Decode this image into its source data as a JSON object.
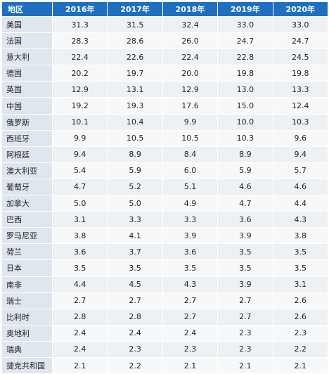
{
  "table": {
    "headers": [
      "地区",
      "2016年",
      "2017年",
      "2018年",
      "2019年",
      "2020年"
    ],
    "rows": [
      [
        "美国",
        "31.3",
        "31.5",
        "32.4",
        "33.0",
        "33.0"
      ],
      [
        "法国",
        "28.3",
        "28.6",
        "26.0",
        "24.7",
        "24.7"
      ],
      [
        "意大利",
        "22.4",
        "22.6",
        "22.4",
        "22.8",
        "24.5"
      ],
      [
        "德国",
        "20.2",
        "19.7",
        "20.0",
        "19.8",
        "19.8"
      ],
      [
        "英国",
        "12.9",
        "13.1",
        "12.9",
        "13.0",
        "13.3"
      ],
      [
        "中国",
        "19.2",
        "19.3",
        "17.6",
        "15.0",
        "12.4"
      ],
      [
        "俄罗斯",
        "10.1",
        "10.4",
        "9.9",
        "10.0",
        "10.3"
      ],
      [
        "西班牙",
        "9.9",
        "10.5",
        "10.5",
        "10.3",
        "9.6"
      ],
      [
        "阿根廷",
        "9.4",
        "8.9",
        "8.4",
        "8.9",
        "9.4"
      ],
      [
        "澳大利亚",
        "5.4",
        "5.9",
        "6.0",
        "5.9",
        "5.7"
      ],
      [
        "葡萄牙",
        "4.7",
        "5.2",
        "5.1",
        "4.6",
        "4.6"
      ],
      [
        "加拿大",
        "5.0",
        "5.0",
        "4.9",
        "4.7",
        "4.4"
      ],
      [
        "巴西",
        "3.1",
        "3.3",
        "3.3",
        "3.6",
        "4.3"
      ],
      [
        "罗马尼亚",
        "3.8",
        "4.1",
        "3.9",
        "3.9",
        "3.8"
      ],
      [
        "荷兰",
        "3.6",
        "3.7",
        "3.6",
        "3.5",
        "3.5"
      ],
      [
        "日本",
        "3.5",
        "3.5",
        "3.5",
        "3.5",
        "3.5"
      ],
      [
        "南非",
        "4.4",
        "4.5",
        "4.3",
        "3.9",
        "3.1"
      ],
      [
        "瑞士",
        "2.7",
        "2.7",
        "2.7",
        "2.7",
        "2.6"
      ],
      [
        "比利时",
        "2.8",
        "2.8",
        "2.7",
        "2.7",
        "2.6"
      ],
      [
        "奥地利",
        "2.4",
        "2.4",
        "2.4",
        "2.3",
        "2.3"
      ],
      [
        "瑞典",
        "2.4",
        "2.3",
        "2.3",
        "2.3",
        "2.2"
      ],
      [
        "捷克共和国",
        "2.1",
        "2.2",
        "2.1",
        "2.1",
        "2.1"
      ]
    ]
  },
  "colors": {
    "header_bg": "#1f6fbf",
    "header_text": "#ffffff",
    "region_bg": "#dfe6ee",
    "row_bg_a": "#eef1f4",
    "row_bg_b": "#f6f8fa"
  }
}
